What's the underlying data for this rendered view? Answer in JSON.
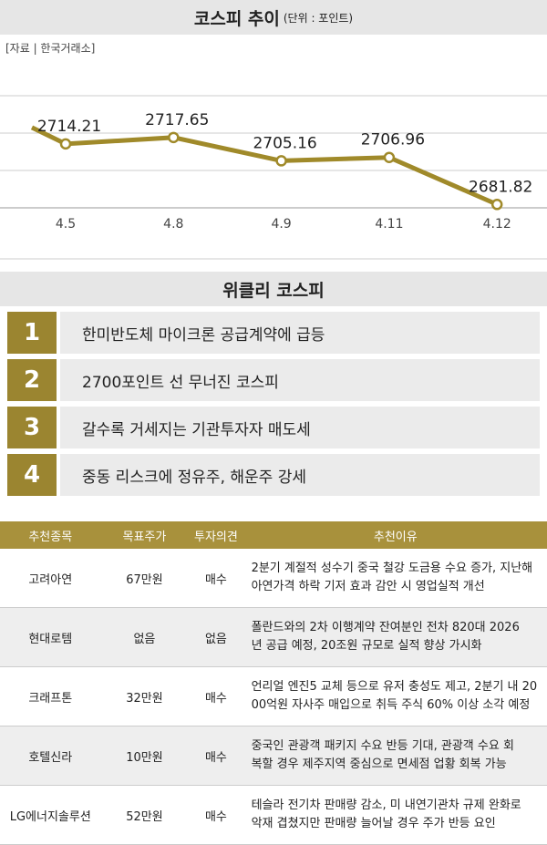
{
  "chart_data": {
    "type": "line",
    "title": "코스피 추이",
    "subtitle": "(단위 : 포인트)",
    "source": "[자료 | 한국거래소]",
    "categories": [
      null,
      "4.5",
      "4.8",
      "4.9",
      "4.11",
      "4.12"
    ],
    "values": [
      2723,
      2714.21,
      2717.65,
      2705.16,
      2706.96,
      2681.82
    ],
    "color": "#a08a2a",
    "ylim": [
      2680,
      2740
    ],
    "yticks": [
      2680,
      2700,
      2720,
      2740
    ],
    "grid": true
  },
  "weekly": {
    "title": "위클리 코스피",
    "items": [
      {
        "rank": 1,
        "text": "한미반도체 마이크론 공급계약에 급등"
      },
      {
        "rank": 2,
        "text": "2700포인트 선 무너진 코스피"
      },
      {
        "rank": 3,
        "text": "갈수록 거세지는 기관투자자 매도세"
      },
      {
        "rank": 4,
        "text": "중동 리스크에 정유주, 해운주 강세"
      }
    ]
  },
  "table": {
    "header": [
      "추천종목",
      "목표주가",
      "투자의견",
      "추천이유"
    ],
    "rows": [
      [
        "고려아연",
        "67만원",
        "매수",
        [
          "2분기 계절적 성수기 중국 철강 도금용 수요 증가, 지난해",
          "아연가격 하락 기저 효과 감안 시 영업실적 개선"
        ]
      ],
      [
        "현대로템",
        "없음",
        "없음",
        [
          "폴란드와의 2차 이행계약 잔여분인 전차 820대 2026",
          "년 공급 예정, 20조원 규모로 실적 향상 가시화"
        ]
      ],
      [
        "크래프톤",
        "32만원",
        "매수",
        [
          "언리얼 엔진5 교체 등으로 유저 충성도 제고, 2분기 내 20",
          "00억원 자사주 매입으로 취득 주식 60% 이상 소각 예정"
        ]
      ],
      [
        "호텔신라",
        "10만원",
        "매수",
        [
          "중국인 관광객 패키지 수요 반등 기대, 관광객 수요 회",
          "복할 경우 제주지역 중심으로 면세점 업황 회복 가능"
        ]
      ],
      [
        "LG에너지솔루션",
        "52만원",
        "매수",
        [
          "테슬라 전기차 판매량 감소, 미 내연기관차 규제 완화로",
          "악재 겹쳤지만 판매량 늘어날 경우 주가 반등 요인"
        ]
      ]
    ]
  }
}
